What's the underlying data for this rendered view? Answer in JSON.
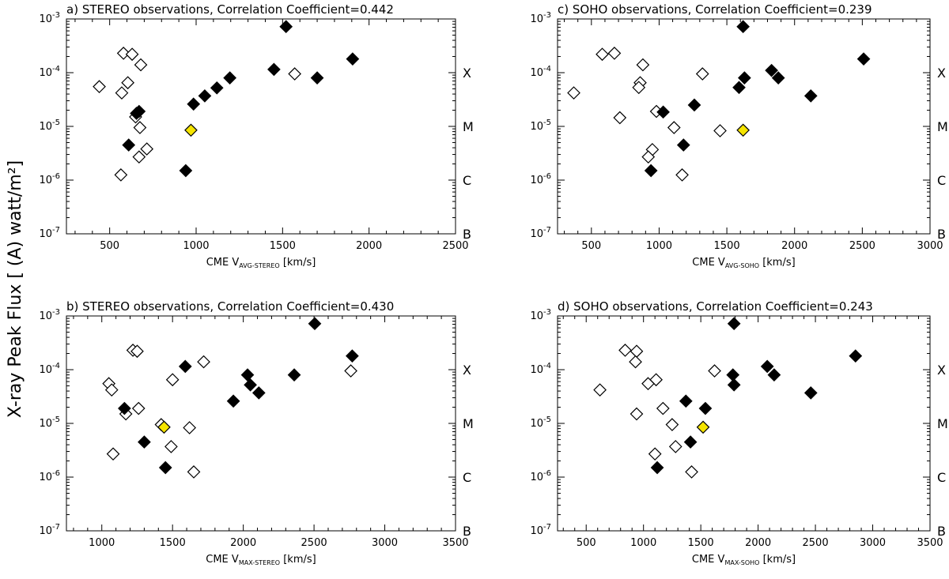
{
  "figure": {
    "ylabel": "X-ray Peak Flux [ (A) watt/m²]",
    "class_labels": [
      "X",
      "M",
      "C",
      "B"
    ],
    "y_ticks": [
      {
        "base": "10",
        "exp": "-7"
      },
      {
        "base": "10",
        "exp": "-6"
      },
      {
        "base": "10",
        "exp": "-5"
      },
      {
        "base": "10",
        "exp": "-4"
      },
      {
        "base": "10",
        "exp": "-3"
      }
    ],
    "colors": {
      "filled": "#000000",
      "open": "#ffffff",
      "highlight": "#f5e400",
      "axis": "#000000"
    }
  },
  "chart_data": [
    {
      "id": "a",
      "type": "scatter",
      "panel_label": "a)",
      "title": "STEREO observations, Correlation Coefficient=0.442",
      "xlabel_prefix": "CME V",
      "xlabel_sub": "AVG-STEREO",
      "xlabel_unit": "[km/s]",
      "xlim": [
        250,
        2500
      ],
      "xticks": [
        500,
        1000,
        1500,
        2000,
        2500
      ],
      "ylim_log10": [
        -7,
        -3
      ],
      "y_scale": "log",
      "series": [
        {
          "name": "filled",
          "points": [
            [
              1520,
              0.00072
            ],
            [
              1905,
              0.00018
            ],
            [
              1450,
              0.000115
            ],
            [
              1700,
              8e-05
            ],
            [
              1195,
              8e-05
            ],
            [
              1120,
              5.2e-05
            ],
            [
              1050,
              3.7e-05
            ],
            [
              985,
              2.6e-05
            ],
            [
              670,
              1.9e-05
            ],
            [
              655,
              1.75e-05
            ],
            [
              610,
              4.5e-06
            ],
            [
              940,
              1.5e-06
            ]
          ]
        },
        {
          "name": "open",
          "points": [
            [
              580,
              0.00023
            ],
            [
              630,
              0.00022
            ],
            [
              680,
              0.00014
            ],
            [
              440,
              5.5e-05
            ],
            [
              605,
              6.5e-05
            ],
            [
              570,
              4.2e-05
            ],
            [
              1570,
              9.5e-05
            ],
            [
              650,
              1.5e-05
            ],
            [
              675,
              9.5e-06
            ],
            [
              715,
              3.8e-06
            ],
            [
              670,
              2.7e-06
            ],
            [
              565,
              1.25e-06
            ]
          ]
        },
        {
          "name": "highlight",
          "points": [
            [
              970,
              8.5e-06
            ]
          ]
        }
      ]
    },
    {
      "id": "c",
      "type": "scatter",
      "panel_label": "c)",
      "title": "SOHO observations, Correlation Coefficient=0.239",
      "xlabel_prefix": "CME V",
      "xlabel_sub": "AVG-SOHO",
      "xlabel_unit": "[km/s]",
      "xlim": [
        250,
        3000
      ],
      "xticks": [
        500,
        1000,
        1500,
        2000,
        2500,
        3000
      ],
      "ylim_log10": [
        -7,
        -3
      ],
      "y_scale": "log",
      "series": [
        {
          "name": "filled",
          "points": [
            [
              1620,
              0.00072
            ],
            [
              2510,
              0.00018
            ],
            [
              1830,
              0.00011
            ],
            [
              1880,
              8e-05
            ],
            [
              1630,
              8e-05
            ],
            [
              1590,
              5.3e-05
            ],
            [
              2120,
              3.7e-05
            ],
            [
              1260,
              2.5e-05
            ],
            [
              1030,
              1.85e-05
            ],
            [
              1180,
              4.5e-06
            ],
            [
              940,
              1.5e-06
            ]
          ]
        },
        {
          "name": "open",
          "points": [
            [
              580,
              0.00022
            ],
            [
              670,
              0.00023
            ],
            [
              880,
              0.00014
            ],
            [
              1320,
              9.5e-05
            ],
            [
              860,
              6.5e-05
            ],
            [
              850,
              5.3e-05
            ],
            [
              370,
              4.2e-05
            ],
            [
              980,
              1.9e-05
            ],
            [
              710,
              1.45e-05
            ],
            [
              1110,
              9.5e-06
            ],
            [
              1450,
              8.3e-06
            ],
            [
              950,
              3.7e-06
            ],
            [
              920,
              2.7e-06
            ],
            [
              1170,
              1.25e-06
            ]
          ]
        },
        {
          "name": "highlight",
          "points": [
            [
              1620,
              8.5e-06
            ]
          ]
        }
      ]
    },
    {
      "id": "b",
      "type": "scatter",
      "panel_label": "b)",
      "title": "STEREO observations, Correlation Coefficient=0.430",
      "xlabel_prefix": "CME V",
      "xlabel_sub": "MAX-STEREO",
      "xlabel_unit": "[km/s]",
      "xlim": [
        750,
        3500
      ],
      "xticks": [
        1000,
        1500,
        2000,
        2500,
        3000,
        3500
      ],
      "ylim_log10": [
        -7,
        -3
      ],
      "y_scale": "log",
      "series": [
        {
          "name": "filled",
          "points": [
            [
              2505,
              0.00072
            ],
            [
              2770,
              0.00018
            ],
            [
              1590,
              0.000115
            ],
            [
              2030,
              8e-05
            ],
            [
              2360,
              8e-05
            ],
            [
              2050,
              5.2e-05
            ],
            [
              2110,
              3.7e-05
            ],
            [
              1930,
              2.6e-05
            ],
            [
              1160,
              1.9e-05
            ],
            [
              1300,
              4.5e-06
            ],
            [
              1450,
              1.5e-06
            ]
          ]
        },
        {
          "name": "open",
          "points": [
            [
              1220,
              0.00023
            ],
            [
              1250,
              0.00022
            ],
            [
              1720,
              0.00014
            ],
            [
              2760,
              9.5e-05
            ],
            [
              1050,
              5.5e-05
            ],
            [
              1500,
              6.5e-05
            ],
            [
              1070,
              4.2e-05
            ],
            [
              1260,
              1.9e-05
            ],
            [
              1170,
              1.5e-05
            ],
            [
              1420,
              9.5e-06
            ],
            [
              1620,
              8.3e-06
            ],
            [
              1490,
              3.7e-06
            ],
            [
              1080,
              2.7e-06
            ],
            [
              1650,
              1.25e-06
            ]
          ]
        },
        {
          "name": "highlight",
          "points": [
            [
              1440,
              8.5e-06
            ]
          ]
        }
      ]
    },
    {
      "id": "d",
      "type": "scatter",
      "panel_label": "d)",
      "title": "SOHO observations, Correlation Coefficient=0.243",
      "xlabel_prefix": "CME V",
      "xlabel_sub": "MAX-SOHO",
      "xlabel_unit": "[km/s]",
      "xlim": [
        250,
        3500
      ],
      "xticks": [
        500,
        1000,
        1500,
        2000,
        2500,
        3000,
        3500
      ],
      "ylim_log10": [
        -7,
        -3
      ],
      "y_scale": "log",
      "series": [
        {
          "name": "filled",
          "points": [
            [
              1790,
              0.00072
            ],
            [
              2850,
              0.00018
            ],
            [
              2080,
              0.000115
            ],
            [
              1780,
              8e-05
            ],
            [
              2140,
              8e-05
            ],
            [
              1790,
              5.2e-05
            ],
            [
              2460,
              3.7e-05
            ],
            [
              1370,
              2.6e-05
            ],
            [
              1540,
              1.9e-05
            ],
            [
              1410,
              4.5e-06
            ],
            [
              1120,
              1.5e-06
            ]
          ]
        },
        {
          "name": "open",
          "points": [
            [
              840,
              0.00023
            ],
            [
              940,
              0.00022
            ],
            [
              930,
              0.00014
            ],
            [
              1620,
              9.5e-05
            ],
            [
              1110,
              6.5e-05
            ],
            [
              1040,
              5.5e-05
            ],
            [
              620,
              4.2e-05
            ],
            [
              1170,
              1.9e-05
            ],
            [
              940,
              1.5e-05
            ],
            [
              1250,
              9.5e-06
            ],
            [
              1280,
              3.7e-06
            ],
            [
              1100,
              2.7e-06
            ],
            [
              1420,
              1.25e-06
            ]
          ]
        },
        {
          "name": "highlight",
          "points": [
            [
              1520,
              8.5e-06
            ]
          ]
        }
      ]
    }
  ]
}
